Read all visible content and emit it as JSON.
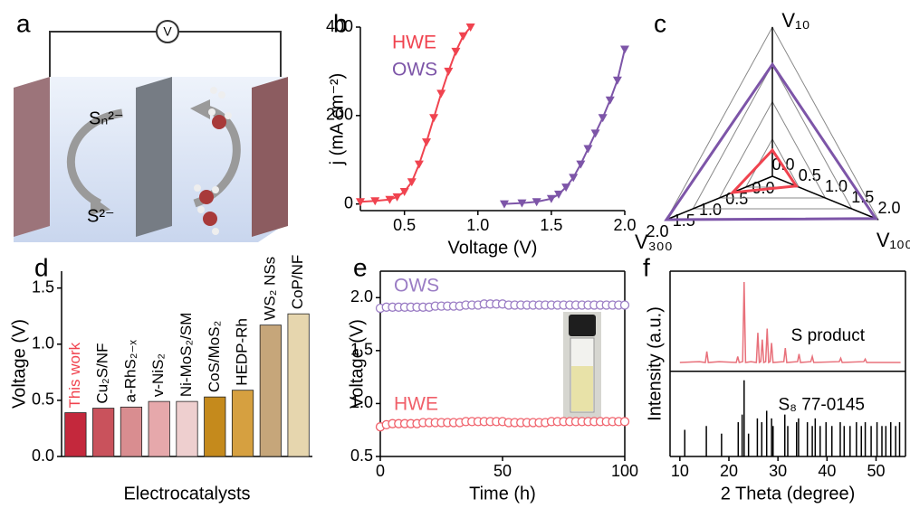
{
  "schematic": {
    "panel_label": "a",
    "voltmeter": "V",
    "upper_species": "Sₙ²⁻",
    "lower_species": "S²⁻"
  },
  "chart_data": [
    {
      "type": "line",
      "panel_label": "b",
      "xlabel": "Voltage (V)",
      "ylabel": "j (mA cm⁻²)",
      "xlim": [
        0.2,
        2.0
      ],
      "ylim": [
        -15,
        400
      ],
      "xticks": [
        0.5,
        {
          "value": 1,
          "label": "1.0"
        },
        1.5,
        {
          "value": 2,
          "label": "2.0"
        }
      ],
      "yticks": [
        0,
        200,
        400
      ],
      "legend": "top-left",
      "series": [
        {
          "name": "HWE",
          "color": "#f0434f",
          "x": [
            0.2,
            0.3,
            0.4,
            0.45,
            0.5,
            0.55,
            0.6,
            0.65,
            0.7,
            0.75,
            0.8,
            0.85,
            0.9,
            0.95
          ],
          "values": [
            5,
            7,
            10,
            16,
            28,
            50,
            90,
            140,
            195,
            250,
            300,
            345,
            380,
            400
          ]
        },
        {
          "name": "OWS",
          "color": "#7d55a8",
          "x": [
            1.18,
            1.3,
            1.4,
            1.5,
            1.55,
            1.6,
            1.65,
            1.7,
            1.75,
            1.8,
            1.85,
            1.9,
            1.95,
            2.0
          ],
          "values": [
            0,
            2,
            5,
            12,
            22,
            38,
            60,
            90,
            125,
            160,
            195,
            235,
            280,
            350
          ]
        }
      ]
    },
    {
      "type": "radar",
      "panel_label": "c",
      "axes": [
        "V₁₀",
        "V₁₀₀",
        "V₃₀₀"
      ],
      "rlim": [
        0,
        2
      ],
      "rticks": [
        {
          "value": 0,
          "label": "0.0"
        },
        0.5,
        {
          "value": 1,
          "label": "1.0"
        },
        1.5,
        {
          "value": 2,
          "label": "2.0"
        }
      ],
      "series": [
        {
          "name": "HWE",
          "color": "#f0434f",
          "values": [
            0.35,
            0.45,
            0.75
          ]
        },
        {
          "name": "OWS",
          "color": "#7d55a8",
          "values": [
            1.5,
            1.95,
            2.0
          ]
        }
      ]
    },
    {
      "type": "bar",
      "panel_label": "d",
      "xlabel": "Electrocatalysts",
      "ylabel": "Voltage (V)",
      "categories": [
        "This work",
        "Cu₂S/NF",
        "a-RhS₂₋ₓ",
        "v-NiS₂",
        "Ni-MoS₂/SM",
        "CoS/MoS₂",
        "HEDP-Rh",
        "WS₂ NSs",
        "CoP/NF"
      ],
      "values": [
        0.39,
        0.43,
        0.44,
        0.49,
        0.49,
        0.53,
        0.59,
        1.17,
        1.27
      ],
      "colors": [
        "#c4283c",
        "#c9525c",
        "#d98d90",
        "#e6a8ab",
        "#eecfcf",
        "#c58a1c",
        "#d6a040",
        "#c6a67a",
        "#e6d6ae"
      ],
      "highlight_color": "#f0434f",
      "highlight_index": 0,
      "ylim": [
        0,
        1.65
      ],
      "yticks": [
        {
          "value": 0,
          "label": "0.0"
        },
        0.5,
        {
          "value": 1,
          "label": "1.0"
        },
        1.5
      ]
    },
    {
      "type": "scatter",
      "panel_label": "e",
      "xlabel": "Time (h)",
      "ylabel": "Voltage (V)",
      "xlim": [
        0,
        100
      ],
      "ylim": [
        0.5,
        2.25
      ],
      "xticks": [
        0,
        50,
        100
      ],
      "yticks": [
        0.5,
        {
          "value": 1,
          "label": "1.0"
        },
        1.5,
        {
          "value": 2,
          "label": "2.0"
        }
      ],
      "x": [
        0,
        2.5,
        5,
        7.5,
        10,
        12.5,
        15,
        17.5,
        20,
        22.5,
        25,
        27.5,
        30,
        32.5,
        35,
        37.5,
        40,
        42.5,
        45,
        47.5,
        50,
        52.5,
        55,
        57.5,
        60,
        62.5,
        65,
        67.5,
        70,
        72.5,
        75,
        77.5,
        80,
        82.5,
        85,
        87.5,
        90,
        92.5,
        95,
        97.5,
        100
      ],
      "series": [
        {
          "name": "OWS",
          "color": "#9a7cc4",
          "values": [
            1.9,
            1.91,
            1.91,
            1.91,
            1.91,
            1.91,
            1.91,
            1.91,
            1.91,
            1.92,
            1.92,
            1.92,
            1.92,
            1.92,
            1.93,
            1.93,
            1.93,
            1.94,
            1.94,
            1.94,
            1.94,
            1.93,
            1.93,
            1.93,
            1.93,
            1.93,
            1.93,
            1.93,
            1.93,
            1.93,
            1.93,
            1.93,
            1.93,
            1.93,
            1.93,
            1.93,
            1.93,
            1.93,
            1.93,
            1.93,
            1.93
          ]
        },
        {
          "name": "HWE",
          "color": "#f0606a",
          "values": [
            0.78,
            0.8,
            0.81,
            0.81,
            0.81,
            0.81,
            0.81,
            0.82,
            0.82,
            0.82,
            0.82,
            0.82,
            0.82,
            0.82,
            0.83,
            0.83,
            0.83,
            0.83,
            0.83,
            0.83,
            0.83,
            0.82,
            0.82,
            0.82,
            0.82,
            0.82,
            0.82,
            0.82,
            0.83,
            0.83,
            0.83,
            0.83,
            0.83,
            0.83,
            0.83,
            0.83,
            0.83,
            0.83,
            0.83,
            0.83,
            0.83
          ]
        }
      ]
    },
    {
      "type": "xrd",
      "panel_label": "f",
      "xlabel": "2 Theta (degree)",
      "ylabel": "Intensity (a.u.)",
      "xlim": [
        8,
        56
      ],
      "xticks": [
        10,
        20,
        30,
        40,
        50
      ],
      "series": [
        {
          "name": "S product",
          "style": "line",
          "color": "#e8707a",
          "x": [
            10,
            14,
            15.2,
            15.5,
            15.8,
            18,
            21.5,
            21.8,
            22.1,
            22.8,
            23.1,
            23.4,
            24.5,
            25.6,
            25.9,
            26.2,
            26.5,
            26.8,
            27.1,
            27.5,
            27.8,
            28.1,
            28.4,
            28.7,
            29,
            31.2,
            31.5,
            31.8,
            34,
            34.3,
            34.6,
            36.7,
            37,
            37.3,
            42.5,
            42.8,
            43.1,
            47.5,
            47.8,
            48.1,
            55
          ],
          "values": [
            5,
            6,
            5,
            18,
            5,
            6,
            5,
            12,
            5,
            6,
            100,
            5,
            6,
            5,
            40,
            5,
            6,
            32,
            5,
            6,
            45,
            5,
            6,
            28,
            5,
            6,
            22,
            5,
            6,
            15,
            5,
            6,
            12,
            5,
            6,
            10,
            5,
            6,
            9,
            5,
            5
          ]
        },
        {
          "name": "S₈ 77-0145",
          "style": "stick",
          "color": "#333333",
          "x": [
            11,
            15.4,
            18.5,
            21.9,
            22.7,
            23.1,
            24,
            25.8,
            26.7,
            27.7,
            28.7,
            29,
            31.4,
            32,
            33.8,
            34.2,
            36,
            37,
            37.6,
            38.6,
            39.8,
            41,
            42.7,
            43.5,
            44.7,
            46,
            47,
            47.8,
            49,
            50.2,
            51.2,
            52,
            53,
            54,
            54.8
          ],
          "values": [
            35,
            40,
            30,
            45,
            55,
            100,
            30,
            50,
            45,
            60,
            50,
            40,
            55,
            40,
            45,
            50,
            45,
            40,
            50,
            40,
            45,
            40,
            45,
            40,
            40,
            45,
            40,
            45,
            40,
            45,
            40,
            40,
            45,
            40,
            45
          ]
        }
      ]
    }
  ]
}
